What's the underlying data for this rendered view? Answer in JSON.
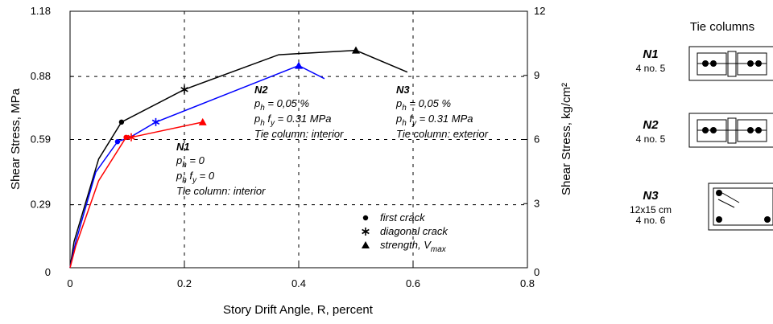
{
  "chart_data": {
    "type": "line",
    "xlabel": "Story Drift Angle, R, percent",
    "ylabel": "Shear Stress,  MPa",
    "y2label": "Shear Stress,  kg/cm²",
    "xlim": [
      0,
      0.8
    ],
    "xticks": [
      0,
      0.2,
      0.4,
      0.6,
      0.8
    ],
    "ylim": [
      0,
      1.18
    ],
    "yticks": [
      0,
      0.29,
      0.59,
      0.88,
      1.18
    ],
    "y2lim": [
      0,
      12
    ],
    "y2ticks": [
      0,
      3,
      6,
      9,
      12
    ],
    "grid": true,
    "series": [
      {
        "name": "N3",
        "color": "#000000",
        "x": [
          0,
          0.007,
          0.05,
          0.09,
          0.2,
          0.365,
          0.5,
          0.59
        ],
        "values": [
          0,
          0.12,
          0.5,
          0.67,
          0.82,
          0.98,
          1.0,
          0.9
        ],
        "markers": [
          null,
          null,
          null,
          "dot",
          "star",
          null,
          "triangle",
          null
        ]
      },
      {
        "name": "N2",
        "color": "#0000ff",
        "x": [
          0,
          0.01,
          0.045,
          0.083,
          0.105,
          0.15,
          0.4,
          0.445
        ],
        "values": [
          0,
          0.12,
          0.44,
          0.58,
          0.6,
          0.67,
          0.93,
          0.87
        ],
        "markers": [
          null,
          null,
          null,
          "dot",
          null,
          "star",
          "triangle",
          null
        ]
      },
      {
        "name": "N1",
        "color": "#ff0000",
        "x": [
          0,
          0.01,
          0.05,
          0.098,
          0.107,
          0.232
        ],
        "values": [
          0,
          0.1,
          0.4,
          0.6,
          0.6,
          0.67
        ],
        "markers": [
          null,
          null,
          null,
          "dot",
          "star",
          "triangle"
        ]
      }
    ],
    "annotations": [
      {
        "label": "N1",
        "lines": [
          [
            {
              "t": "p"
            },
            {
              "sub": "h"
            },
            {
              "t": " = 0"
            }
          ],
          [
            {
              "t": "p"
            },
            {
              "sub": "h"
            },
            {
              "t": " f"
            },
            {
              "sub": "y"
            },
            {
              "t": " = 0"
            }
          ],
          [
            {
              "t": "Tie column: interior"
            }
          ]
        ]
      },
      {
        "label": "N2",
        "lines": [
          [
            {
              "t": "p"
            },
            {
              "sub": "h"
            },
            {
              "t": " = 0,05 %"
            }
          ],
          [
            {
              "t": "p"
            },
            {
              "sub": "h"
            },
            {
              "t": " f"
            },
            {
              "sub": "y"
            },
            {
              "t": " = 0.31 MPa"
            }
          ],
          [
            {
              "t": "Tie column: interior"
            }
          ]
        ]
      },
      {
        "label": "N3",
        "lines": [
          [
            {
              "t": "p"
            },
            {
              "sub": "h"
            },
            {
              "t": " = 0,05 %"
            }
          ],
          [
            {
              "t": "p"
            },
            {
              "sub": "h"
            },
            {
              "t": " f"
            },
            {
              "sub": "y"
            },
            {
              "t": " = 0.31 MPa"
            }
          ],
          [
            {
              "t": "Tie column: exterior"
            }
          ]
        ]
      }
    ],
    "legend": [
      {
        "marker": "dot",
        "parts": [
          {
            "t": "first crack"
          }
        ]
      },
      {
        "marker": "star",
        "parts": [
          {
            "t": "diagonal crack"
          }
        ]
      },
      {
        "marker": "triangle",
        "parts": [
          {
            "t": "strength,  V"
          },
          {
            "sub": "max"
          }
        ]
      }
    ]
  },
  "diagram": {
    "title": "Tie columns",
    "items": [
      {
        "name": "N1",
        "detail": [
          "4 no. 5"
        ]
      },
      {
        "name": "N2",
        "detail": [
          "4 no. 5"
        ]
      },
      {
        "name": "N3",
        "detail": [
          "12x15 cm",
          "4 no. 6"
        ]
      }
    ]
  }
}
